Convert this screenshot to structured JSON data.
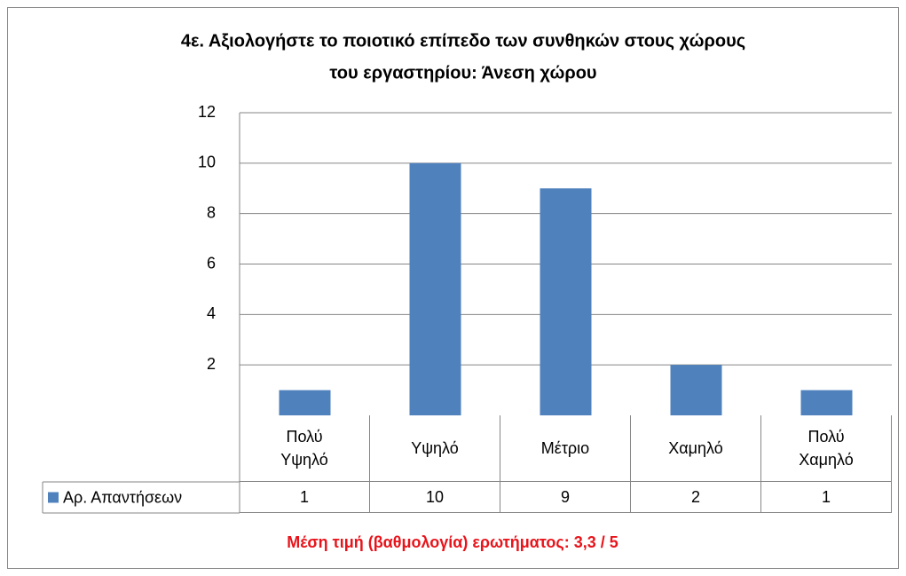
{
  "chart_data": {
    "type": "bar",
    "title": [
      "4ε. Αξιολογήστε το ποιοτικό επίπεδο των συνθηκών στους χώρους",
      "του εργαστηρίου: Άνεση χώρου"
    ],
    "categories": [
      "Πολύ Υψηλό",
      "Υψηλό",
      "Μέτριο",
      "Χαμηλό",
      "Πολύ Χαμηλό"
    ],
    "series": [
      {
        "name": "Αρ. Απαντήσεων",
        "color": "#4f81bd",
        "values": [
          1,
          10,
          9,
          2,
          1
        ]
      }
    ],
    "ylim": [
      0,
      12
    ],
    "yticks": [
      2,
      4,
      6,
      8,
      10,
      12
    ],
    "grid": true,
    "data_table": true,
    "annotation": "Μέση τιμή (βαθμολογία) ερωτήματος: 3,3 / 5"
  }
}
